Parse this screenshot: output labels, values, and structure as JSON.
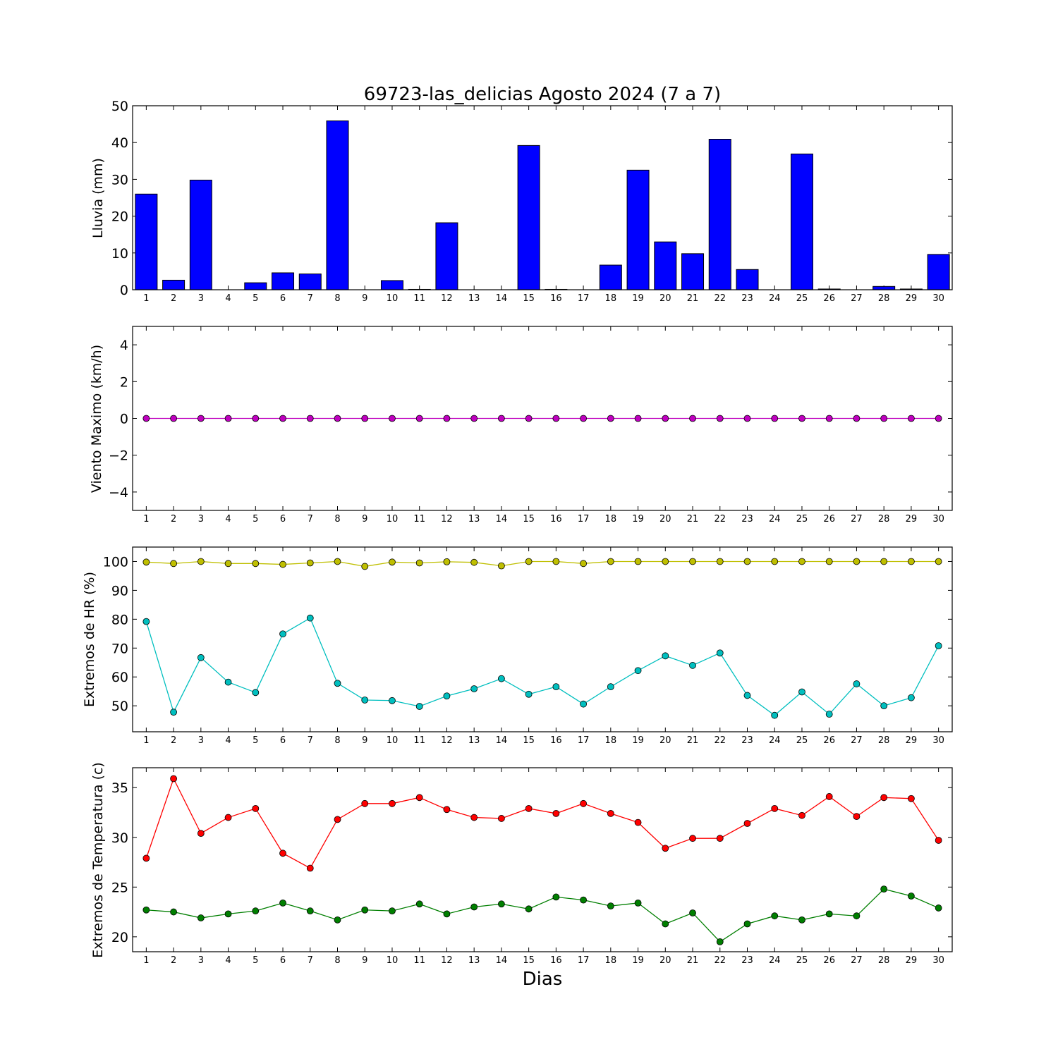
{
  "figure": {
    "title": "69723-las_delicias Agosto 2024  (7 a 7)",
    "xlabel": "Dias"
  },
  "chart_data": [
    {
      "type": "bar",
      "ylabel": "Lluvia (mm)",
      "ylim": [
        0,
        50
      ],
      "yticks": [
        0,
        10,
        20,
        30,
        40,
        50
      ],
      "ytick_labels": [
        "0",
        "10",
        "20",
        "30",
        "40",
        "50"
      ],
      "xlim": [
        0.5,
        30.5
      ],
      "categories": [
        1,
        2,
        3,
        4,
        5,
        6,
        7,
        8,
        9,
        10,
        11,
        12,
        13,
        14,
        15,
        16,
        17,
        18,
        19,
        20,
        21,
        22,
        23,
        24,
        25,
        26,
        27,
        28,
        29,
        30
      ],
      "series": [
        {
          "color": "#0000ff",
          "values": [
            26.0,
            2.6,
            29.8,
            0.0,
            1.9,
            4.6,
            4.3,
            45.9,
            0.0,
            2.5,
            0.1,
            18.2,
            0.0,
            0.0,
            39.2,
            0.1,
            0.0,
            6.7,
            32.5,
            13.0,
            9.8,
            40.9,
            5.5,
            0.0,
            36.9,
            0.2,
            0.0,
            0.9,
            0.2,
            9.6
          ]
        }
      ]
    },
    {
      "type": "line",
      "ylabel": "Viento Maximo (km/h)",
      "ylim": [
        -5,
        5
      ],
      "yticks": [
        -4,
        -2,
        0,
        2,
        4
      ],
      "ytick_labels": [
        "−4",
        "−2",
        "0",
        "2",
        "4"
      ],
      "xlim": [
        0.5,
        30.5
      ],
      "x": [
        1,
        2,
        3,
        4,
        5,
        6,
        7,
        8,
        9,
        10,
        11,
        12,
        13,
        14,
        15,
        16,
        17,
        18,
        19,
        20,
        21,
        22,
        23,
        24,
        25,
        26,
        27,
        28,
        29,
        30
      ],
      "series": [
        {
          "color": "#bf00bf",
          "values": [
            0,
            0,
            0,
            0,
            0,
            0,
            0,
            0,
            0,
            0,
            0,
            0,
            0,
            0,
            0,
            0,
            0,
            0,
            0,
            0,
            0,
            0,
            0,
            0,
            0,
            0,
            0,
            0,
            0,
            0
          ]
        }
      ]
    },
    {
      "type": "line",
      "ylabel": "Extremos de HR (%)",
      "ylim": [
        41,
        105
      ],
      "yticks": [
        50,
        60,
        70,
        80,
        90,
        100
      ],
      "ytick_labels": [
        "50",
        "60",
        "70",
        "80",
        "90",
        "100"
      ],
      "xlim": [
        0.5,
        30.5
      ],
      "x": [
        1,
        2,
        3,
        4,
        5,
        6,
        7,
        8,
        9,
        10,
        11,
        12,
        13,
        14,
        15,
        16,
        17,
        18,
        19,
        20,
        21,
        22,
        23,
        24,
        25,
        26,
        27,
        28,
        29,
        30
      ],
      "series": [
        {
          "color": "#bfbf00",
          "values": [
            99.8,
            99.3,
            100,
            99.3,
            99.3,
            99.0,
            99.5,
            100,
            98.3,
            99.8,
            99.5,
            99.9,
            99.7,
            98.5,
            100,
            100,
            99.3,
            100,
            100,
            100,
            100,
            100,
            100,
            100,
            100,
            100,
            100,
            100,
            100,
            100
          ]
        },
        {
          "color": "#00bfbf",
          "values": [
            79.2,
            47.8,
            66.7,
            58.2,
            54.6,
            74.9,
            80.4,
            57.8,
            52.0,
            51.8,
            49.8,
            53.4,
            55.9,
            59.4,
            54.0,
            56.6,
            50.6,
            56.6,
            62.2,
            67.3,
            64.0,
            68.3,
            53.6,
            46.7,
            54.8,
            47.1,
            57.6,
            50.0,
            52.8,
            70.8
          ]
        }
      ]
    },
    {
      "type": "line",
      "ylabel": "Extremos de Temperatura (c)",
      "ylim": [
        18.5,
        37
      ],
      "yticks": [
        20,
        25,
        30,
        35
      ],
      "ytick_labels": [
        "20",
        "25",
        "30",
        "35"
      ],
      "xlim": [
        0.5,
        30.5
      ],
      "x": [
        1,
        2,
        3,
        4,
        5,
        6,
        7,
        8,
        9,
        10,
        11,
        12,
        13,
        14,
        15,
        16,
        17,
        18,
        19,
        20,
        21,
        22,
        23,
        24,
        25,
        26,
        27,
        28,
        29,
        30
      ],
      "series": [
        {
          "color": "#ff0000",
          "values": [
            27.9,
            35.9,
            30.4,
            32.0,
            32.9,
            28.4,
            26.9,
            31.8,
            33.4,
            33.4,
            34.0,
            32.8,
            32.0,
            31.9,
            32.9,
            32.4,
            33.4,
            32.4,
            31.5,
            28.9,
            29.9,
            29.9,
            31.4,
            32.9,
            32.2,
            34.1,
            32.1,
            34.0,
            33.9,
            29.7
          ]
        },
        {
          "color": "#007f00",
          "values": [
            22.7,
            22.5,
            21.9,
            22.3,
            22.6,
            23.4,
            22.6,
            21.7,
            22.7,
            22.6,
            23.3,
            22.3,
            23.0,
            23.3,
            22.8,
            24.0,
            23.7,
            23.1,
            23.4,
            21.3,
            22.4,
            19.5,
            21.3,
            22.1,
            21.7,
            22.3,
            22.1,
            24.8,
            24.1,
            22.9
          ]
        }
      ]
    }
  ]
}
